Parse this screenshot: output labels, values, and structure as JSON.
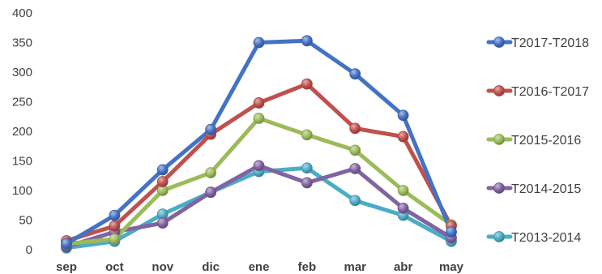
{
  "chart_data": {
    "type": "line",
    "categories": [
      "sep",
      "oct",
      "nov",
      "dic",
      "ene",
      "feb",
      "mar",
      "abr",
      "may"
    ],
    "ylim": [
      0,
      400
    ],
    "yticks": [
      0,
      50,
      100,
      150,
      200,
      250,
      300,
      350,
      400
    ],
    "grid": false,
    "legend": "right",
    "series": [
      {
        "name": "T2017-T2018",
        "color": "#4472C4",
        "values": [
          10,
          58,
          135,
          203,
          350,
          353,
          297,
          227,
          30
        ]
      },
      {
        "name": "T2016-T2017",
        "color": "#C0504D",
        "values": [
          15,
          40,
          115,
          195,
          248,
          280,
          205,
          191,
          40
        ]
      },
      {
        "name": "T2015-2016",
        "color": "#9BBB59",
        "values": [
          10,
          18,
          100,
          130,
          222,
          194,
          168,
          100,
          42
        ]
      },
      {
        "name": "T2014-2015",
        "color": "#8064A2",
        "values": [
          5,
          30,
          45,
          97,
          142,
          113,
          137,
          70,
          20
        ]
      },
      {
        "name": "T2013-2014",
        "color": "#4BACC6",
        "values": [
          3,
          14,
          60,
          97,
          132,
          138,
          83,
          58,
          14
        ]
      }
    ]
  }
}
